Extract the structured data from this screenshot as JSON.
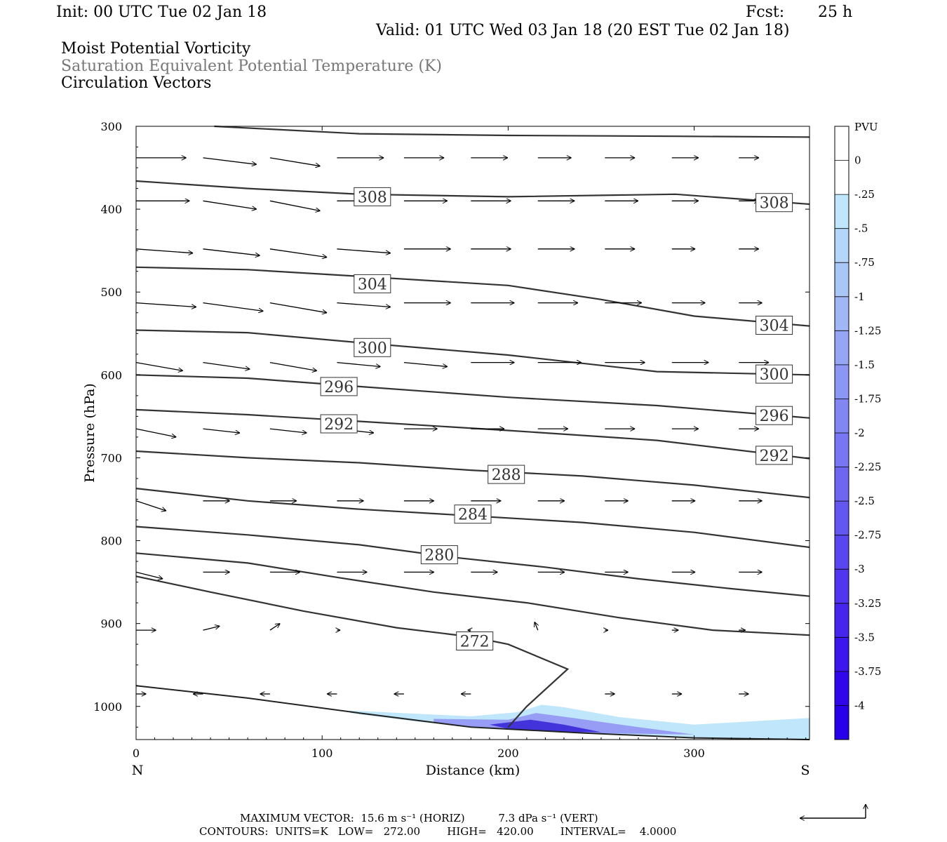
{
  "header": {
    "init": "Init: 00 UTC Tue 02 Jan 18",
    "fcst_label": "Fcst:",
    "fcst_value": "25 h",
    "valid": "Valid: 01 UTC Wed 03 Jan 18 (20 EST Tue 02 Jan 18)",
    "field1": "Moist Potential Vorticity",
    "field2": "Saturation Equivalent Potential Temperature (K)",
    "field3": "Circulation Vectors"
  },
  "footer": {
    "max_vector": "MAXIMUM VECTOR:  15.6 m s⁻¹ (HORIZ)          7.3 dPa s⁻¹ (VERT)",
    "contours": "CONTOURS:  UNITS=K   LOW=   272.00        HIGH=   420.00        INTERVAL=    4.0000"
  },
  "colors": {
    "contour": "#333333",
    "light_fill": "#bfe6fa",
    "mid_fill": "#8f8ff2",
    "dark_fill": "#3a28d8"
  },
  "chart_data": {
    "type": "cross-section",
    "xlabel": "Distance (km)",
    "ylabel": "Pressure (hPa)",
    "xlim": [
      0,
      362
    ],
    "ylim": [
      300,
      1040
    ],
    "x_ticks": [
      0,
      100,
      200,
      300
    ],
    "y_ticks": [
      300,
      400,
      500,
      600,
      700,
      800,
      900,
      1000
    ],
    "left_end_label": "N",
    "right_end_label": "S",
    "colorbar": {
      "unit": "PVU",
      "labels": [
        "0",
        "-.25",
        "-.5",
        "-.75",
        "-1",
        "-1.25",
        "-1.5",
        "-1.75",
        "-2",
        "-2.25",
        "-2.5",
        "-2.75",
        "-3",
        "-3.25",
        "-3.5",
        "-3.75",
        "-4"
      ],
      "colors": [
        "#ffffff",
        "#ffffff",
        "#bfe6fa",
        "#b4d6f8",
        "#aac6f7",
        "#a0b6f6",
        "#96a6f5",
        "#8c96f4",
        "#8286f3",
        "#7876f2",
        "#6e66f1",
        "#6456f0",
        "#5a46ef",
        "#5036ee",
        "#4626ed",
        "#3c16ec",
        "#3206eb",
        "#2800ea"
      ]
    },
    "contours": [
      {
        "value": 272,
        "label": "272",
        "points": [
          [
            0,
            843
          ],
          [
            40,
            862
          ],
          [
            90,
            885
          ],
          [
            140,
            905
          ],
          [
            180,
            916
          ],
          [
            200,
            925
          ],
          [
            232,
            955
          ],
          [
            210,
            1000
          ],
          [
            200,
            1025
          ]
        ],
        "label_at": [
          182,
          921
        ]
      },
      {
        "value": 276,
        "label": "",
        "points": [
          [
            0,
            815
          ],
          [
            60,
            827
          ],
          [
            110,
            845
          ],
          [
            160,
            862
          ],
          [
            210,
            875
          ],
          [
            260,
            893
          ],
          [
            310,
            908
          ],
          [
            362,
            914
          ]
        ]
      },
      {
        "value": 280,
        "label": "280",
        "points": [
          [
            0,
            783
          ],
          [
            60,
            793
          ],
          [
            120,
            805
          ],
          [
            170,
            820
          ],
          [
            220,
            832
          ],
          [
            270,
            846
          ],
          [
            320,
            858
          ],
          [
            362,
            867
          ]
        ],
        "label_at": [
          163,
          817
        ]
      },
      {
        "value": 284,
        "label": "284",
        "points": [
          [
            0,
            737
          ],
          [
            60,
            752
          ],
          [
            120,
            762
          ],
          [
            180,
            770
          ],
          [
            240,
            778
          ],
          [
            300,
            790
          ],
          [
            362,
            808
          ]
        ],
        "label_at": [
          181,
          768
        ]
      },
      {
        "value": 288,
        "label": "288",
        "points": [
          [
            0,
            692
          ],
          [
            60,
            700
          ],
          [
            120,
            706
          ],
          [
            180,
            715
          ],
          [
            240,
            722
          ],
          [
            300,
            733
          ],
          [
            362,
            748
          ]
        ],
        "label_at": [
          199,
          720
        ]
      },
      {
        "value": 292,
        "label": "292",
        "points": [
          [
            0,
            642
          ],
          [
            60,
            648
          ],
          [
            120,
            656
          ],
          [
            200,
            667
          ],
          [
            280,
            679
          ],
          [
            362,
            701
          ]
        ],
        "label_at": [
          109,
          659
        ],
        "label2_at": [
          343,
          697
        ]
      },
      {
        "value": 296,
        "label": "296",
        "points": [
          [
            0,
            600
          ],
          [
            60,
            604
          ],
          [
            120,
            614
          ],
          [
            200,
            627
          ],
          [
            280,
            637
          ],
          [
            362,
            652
          ]
        ],
        "label_at": [
          109,
          614
        ],
        "label2_at": [
          343,
          649
        ]
      },
      {
        "value": 300,
        "label": "300",
        "points": [
          [
            0,
            546
          ],
          [
            60,
            549
          ],
          [
            120,
            561
          ],
          [
            200,
            576
          ],
          [
            280,
            596
          ],
          [
            362,
            600
          ]
        ],
        "label_at": [
          127,
          567
        ],
        "label2_at": [
          343,
          599
        ]
      },
      {
        "value": 304,
        "label": "304",
        "points": [
          [
            0,
            470
          ],
          [
            60,
            473
          ],
          [
            120,
            481
          ],
          [
            200,
            492
          ],
          [
            250,
            509
          ],
          [
            300,
            529
          ],
          [
            362,
            541
          ]
        ],
        "label_at": [
          127,
          490
        ],
        "label2_at": [
          343,
          540
        ]
      },
      {
        "value": 308,
        "label": "308",
        "points": [
          [
            0,
            366
          ],
          [
            60,
            375
          ],
          [
            120,
            382
          ],
          [
            200,
            385
          ],
          [
            290,
            382
          ],
          [
            362,
            394
          ]
        ],
        "label_at": [
          127,
          385
        ],
        "label2_at": [
          343,
          392
        ]
      },
      {
        "value": 312,
        "label": "",
        "points": [
          [
            42,
            300
          ],
          [
            120,
            309
          ],
          [
            200,
            311
          ],
          [
            290,
            312
          ],
          [
            362,
            313
          ]
        ]
      }
    ],
    "surface": [
      [
        0,
        975
      ],
      [
        60,
        990
      ],
      [
        120,
        1008
      ],
      [
        180,
        1025
      ],
      [
        240,
        1032
      ],
      [
        300,
        1038
      ],
      [
        362,
        1040
      ]
    ],
    "pv_fill": {
      "light": [
        [
          115,
          1005
        ],
        [
          180,
          1012
        ],
        [
          205,
          1007
        ],
        [
          218,
          998
        ],
        [
          230,
          1001
        ],
        [
          260,
          1013
        ],
        [
          300,
          1022
        ],
        [
          362,
          1014
        ],
        [
          362,
          1040
        ],
        [
          300,
          1038
        ],
        [
          240,
          1032
        ],
        [
          180,
          1025
        ],
        [
          150,
          1018
        ],
        [
          115,
          1008
        ]
      ],
      "mid": [
        [
          160,
          1015
        ],
        [
          200,
          1016
        ],
        [
          215,
          1008
        ],
        [
          235,
          1014
        ],
        [
          270,
          1025
        ],
        [
          300,
          1034
        ],
        [
          240,
          1032
        ],
        [
          180,
          1025
        ],
        [
          160,
          1020
        ]
      ],
      "dark": [
        [
          190,
          1022
        ],
        [
          212,
          1016
        ],
        [
          230,
          1022
        ],
        [
          250,
          1031
        ],
        [
          230,
          1031
        ],
        [
          200,
          1027
        ]
      ]
    },
    "vectors": [
      {
        "p": 338,
        "xs": [
          0,
          36,
          72,
          108,
          144,
          180,
          216,
          252,
          288,
          324
        ],
        "dx": [
          30,
          32,
          30,
          28,
          24,
          22,
          20,
          18,
          16,
          12
        ],
        "dp": [
          0,
          8,
          10,
          0,
          0,
          0,
          0,
          0,
          0,
          0
        ]
      },
      {
        "p": 390,
        "xs": [
          0,
          36,
          72,
          108,
          144,
          180,
          216,
          252,
          288,
          324
        ],
        "dx": [
          32,
          32,
          30,
          28,
          26,
          24,
          22,
          20,
          16,
          12
        ],
        "dp": [
          0,
          10,
          12,
          0,
          0,
          0,
          0,
          0,
          0,
          0
        ]
      },
      {
        "p": 448,
        "xs": [
          0,
          36,
          72,
          108,
          144,
          180,
          216,
          252,
          288,
          324
        ],
        "dx": [
          34,
          34,
          34,
          32,
          28,
          24,
          22,
          18,
          14,
          12
        ],
        "dp": [
          5,
          8,
          10,
          5,
          0,
          0,
          0,
          0,
          0,
          0
        ]
      },
      {
        "p": 513,
        "xs": [
          0,
          36,
          72,
          108,
          144,
          180,
          216,
          252,
          288,
          324
        ],
        "dx": [
          36,
          36,
          34,
          32,
          28,
          26,
          24,
          22,
          20,
          14
        ],
        "dp": [
          5,
          10,
          12,
          5,
          0,
          0,
          0,
          0,
          0,
          0
        ]
      },
      {
        "p": 585,
        "xs": [
          0,
          36,
          72,
          108,
          144,
          180,
          216,
          252,
          288,
          324
        ],
        "dx": [
          28,
          28,
          28,
          26,
          26,
          26,
          26,
          24,
          22,
          18
        ],
        "dp": [
          10,
          8,
          10,
          5,
          5,
          0,
          0,
          0,
          0,
          0
        ]
      },
      {
        "p": 665,
        "xs": [
          0,
          36,
          72,
          108,
          144,
          180,
          216,
          252,
          288,
          324
        ],
        "dx": [
          24,
          22,
          22,
          22,
          20,
          20,
          18,
          18,
          16,
          12
        ],
        "dp": [
          10,
          5,
          5,
          5,
          0,
          0,
          0,
          0,
          0,
          0
        ]
      },
      {
        "p": 752,
        "xs": [
          0,
          36,
          72,
          108,
          144,
          180,
          216,
          252,
          288,
          324
        ],
        "dx": [
          18,
          16,
          16,
          16,
          18,
          18,
          16,
          14,
          14,
          14
        ],
        "dp": [
          12,
          0,
          0,
          0,
          0,
          0,
          0,
          0,
          0,
          0
        ]
      },
      {
        "p": 838,
        "xs": [
          0,
          36,
          72,
          108,
          144,
          180,
          216,
          252,
          288,
          324
        ],
        "dx": [
          16,
          16,
          18,
          18,
          18,
          16,
          16,
          14,
          14,
          14
        ],
        "dp": [
          8,
          0,
          0,
          0,
          0,
          0,
          0,
          0,
          0,
          0
        ]
      },
      {
        "p": 908,
        "xs": [
          0,
          36,
          72,
          108,
          144,
          180,
          216,
          252,
          288,
          324
        ],
        "dx": [
          12,
          10,
          6,
          2,
          0,
          -2,
          -2,
          2,
          4,
          4
        ],
        "dp": [
          0,
          -5,
          -8,
          0,
          0,
          0,
          -10,
          0,
          0,
          0
        ]
      },
      {
        "p": 985,
        "xs": [
          0,
          36,
          72,
          108,
          144,
          180,
          216,
          252,
          288,
          324
        ],
        "dx": [
          6,
          -6,
          -6,
          -6,
          -6,
          -6,
          0,
          6,
          6,
          6
        ],
        "dp": [
          0,
          0,
          0,
          0,
          0,
          0,
          0,
          0,
          0,
          0
        ]
      }
    ]
  }
}
